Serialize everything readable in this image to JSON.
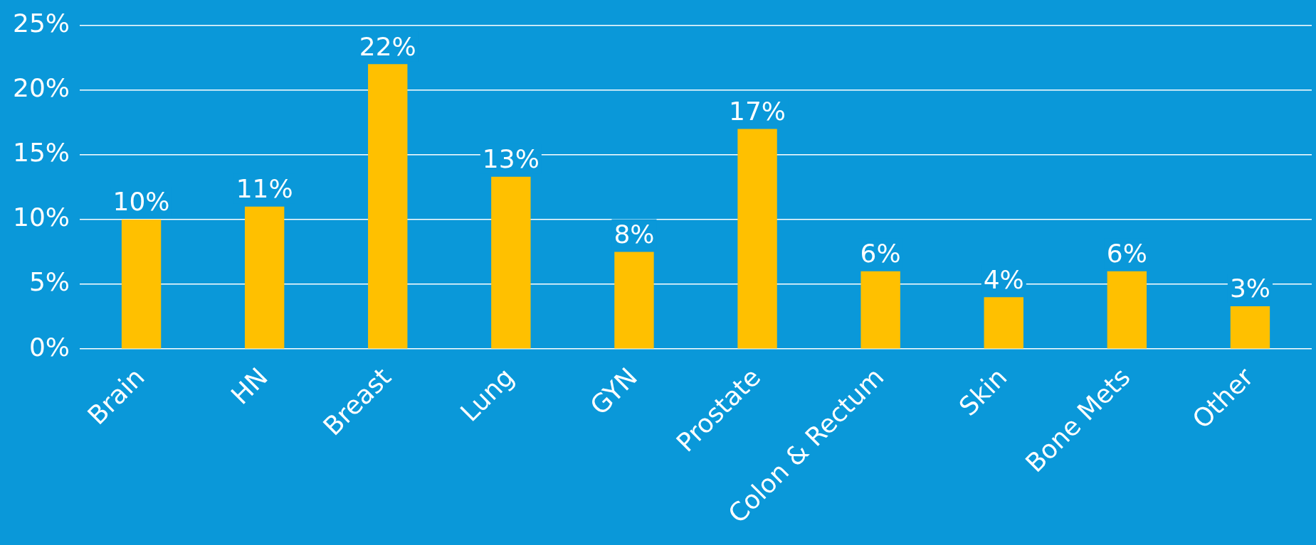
{
  "chart_data": {
    "type": "bar",
    "categories": [
      "Brain",
      "HN",
      "Breast",
      "Lung",
      "GYN",
      "Prostate",
      "Colon & Rectum",
      "Skin",
      "Bone Mets",
      "Other"
    ],
    "values": [
      10,
      11,
      22,
      13.3,
      7.5,
      17,
      6,
      4,
      6,
      3.3
    ],
    "value_labels": [
      "10%",
      "11%",
      "22%",
      "13%",
      "8%",
      "17%",
      "6%",
      "4%",
      "6%",
      "3%"
    ],
    "color": "#ffc000",
    "ylim": [
      0,
      25
    ],
    "yticks": [
      {
        "value": 0,
        "label": "0%"
      },
      {
        "value": 5,
        "label": "5%"
      },
      {
        "value": 10,
        "label": "10%"
      },
      {
        "value": 15,
        "label": "15%"
      },
      {
        "value": 20,
        "label": "20%"
      },
      {
        "value": 25,
        "label": "25%"
      }
    ],
    "grid": "y",
    "legend": false
  }
}
